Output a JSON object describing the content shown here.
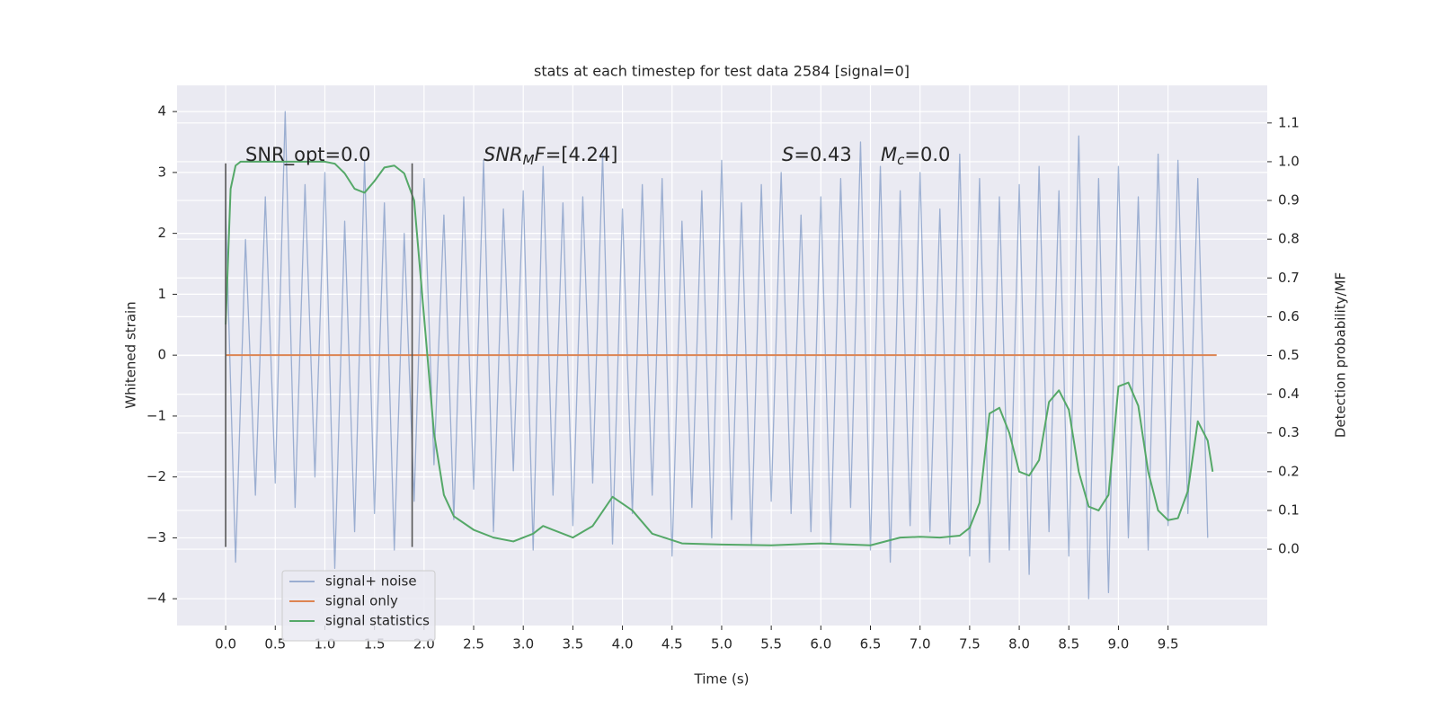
{
  "chart_data": {
    "type": "line",
    "title": "stats at each timestep for test data 2584 [signal=0]",
    "xlabel": "Time (s)",
    "ylabel": "Whitened strain",
    "y2label": "Detection probability/MF",
    "xlim": [
      -0.49,
      10.5
    ],
    "ylim": [
      -4.44,
      4.43
    ],
    "y2lim": [
      -0.197,
      1.197
    ],
    "grid": true,
    "legend": "lower left",
    "xticks": [
      {
        "value": 0,
        "label": "0.0"
      },
      {
        "value": 0.5,
        "label": "0.5"
      },
      {
        "value": 1,
        "label": "1.0"
      },
      {
        "value": 1.5,
        "label": "1.5"
      },
      {
        "value": 2,
        "label": "2.0"
      },
      {
        "value": 2.5,
        "label": "2.5"
      },
      {
        "value": 3,
        "label": "3.0"
      },
      {
        "value": 3.5,
        "label": "3.5"
      },
      {
        "value": 4,
        "label": "4.0"
      },
      {
        "value": 4.5,
        "label": "4.5"
      },
      {
        "value": 5,
        "label": "5.0"
      },
      {
        "value": 5.5,
        "label": "5.5"
      },
      {
        "value": 6,
        "label": "6.0"
      },
      {
        "value": 6.5,
        "label": "6.5"
      },
      {
        "value": 7,
        "label": "7.0"
      },
      {
        "value": 7.5,
        "label": "7.5"
      },
      {
        "value": 8,
        "label": "8.0"
      },
      {
        "value": 8.5,
        "label": "8.5"
      },
      {
        "value": 9,
        "label": "9.0"
      },
      {
        "value": 9.5,
        "label": "9.5"
      }
    ],
    "yticks": [
      {
        "value": -4,
        "label": "−4"
      },
      {
        "value": -3,
        "label": "−3"
      },
      {
        "value": -2,
        "label": "−2"
      },
      {
        "value": -1,
        "label": "−1"
      },
      0,
      1,
      2,
      3,
      4
    ],
    "y2ticks": [
      {
        "value": 0,
        "label": "0.0"
      },
      {
        "value": 0.1,
        "label": "0.1"
      },
      {
        "value": 0.2,
        "label": "0.2"
      },
      {
        "value": 0.3,
        "label": "0.3"
      },
      {
        "value": 0.4,
        "label": "0.4"
      },
      {
        "value": 0.5,
        "label": "0.5"
      },
      {
        "value": 0.6,
        "label": "0.6"
      },
      {
        "value": 0.7,
        "label": "0.7"
      },
      {
        "value": 0.8,
        "label": "0.8"
      },
      {
        "value": 0.9,
        "label": "0.9"
      },
      {
        "value": 1,
        "label": "1.0"
      },
      {
        "value": 1.1,
        "label": "1.1"
      }
    ],
    "vlines": {
      "x": [
        0,
        1.88
      ],
      "ymin": -3.15,
      "ymax": 3.15,
      "color": "#555555"
    },
    "annotations": [
      [
        {
          "text": "SNR_opt=0.0",
          "italic": false
        }
      ],
      [
        {
          "text": "SNR",
          "italic": true
        },
        {
          "text": "M",
          "italic": true,
          "sub": true
        },
        {
          "text": "F",
          "italic": true
        },
        {
          "text": "=[4.24]",
          "italic": false
        }
      ],
      [
        {
          "text": "S",
          "italic": true
        },
        {
          "text": "=0.43",
          "italic": false
        }
      ],
      [
        {
          "text": "M",
          "italic": true
        },
        {
          "text": "c",
          "italic": true,
          "sub": true
        },
        {
          "text": "=0.0",
          "italic": false
        }
      ]
    ],
    "series": [
      {
        "name": "signal+ noise",
        "color": "#4c72b0",
        "opacity": 0.5,
        "x": [
          0,
          0.1,
          0.2,
          0.3,
          0.4,
          0.5,
          0.6,
          0.7,
          0.8,
          0.9,
          1,
          1.1,
          1.2,
          1.3,
          1.4,
          1.5,
          1.6,
          1.7,
          1.8,
          1.9,
          2,
          2.1,
          2.2,
          2.3,
          2.4,
          2.5,
          2.6,
          2.7,
          2.8,
          2.9,
          3,
          3.1,
          3.2,
          3.3,
          3.4,
          3.5,
          3.6,
          3.7,
          3.8,
          3.9,
          4,
          4.1,
          4.2,
          4.3,
          4.4,
          4.5,
          4.6,
          4.7,
          4.8,
          4.9,
          5,
          5.1,
          5.2,
          5.3,
          5.4,
          5.5,
          5.6,
          5.7,
          5.8,
          5.9,
          6,
          6.1,
          6.2,
          6.3,
          6.4,
          6.5,
          6.6,
          6.7,
          6.8,
          6.9,
          7,
          7.1,
          7.2,
          7.3,
          7.4,
          7.5,
          7.6,
          7.7,
          7.8,
          7.9,
          8,
          8.1,
          8.2,
          8.3,
          8.4,
          8.5,
          8.6,
          8.7,
          8.8,
          8.9,
          9,
          9.1,
          9.2,
          9.3,
          9.4,
          9.5,
          9.6,
          9.7,
          9.8,
          9.9
        ],
        "values": [
          2.4,
          -3.4,
          1.9,
          -2.3,
          2.6,
          -2.1,
          4.0,
          -2.5,
          2.8,
          -2.0,
          3.0,
          -3.5,
          2.2,
          -2.9,
          3.2,
          -2.6,
          2.5,
          -3.2,
          2.0,
          -2.4,
          2.9,
          -1.8,
          2.3,
          -2.7,
          2.6,
          -2.2,
          3.2,
          -2.9,
          2.4,
          -1.9,
          2.7,
          -3.2,
          3.1,
          -2.3,
          2.5,
          -2.8,
          2.6,
          -2.1,
          3.3,
          -3.1,
          2.4,
          -2.6,
          2.8,
          -2.3,
          2.9,
          -3.3,
          2.2,
          -2.5,
          2.7,
          -3.0,
          3.2,
          -2.7,
          2.5,
          -3.1,
          2.8,
          -2.4,
          3.0,
          -2.6,
          2.3,
          -2.9,
          2.6,
          -3.1,
          2.9,
          -2.5,
          3.5,
          -3.2,
          3.1,
          -3.4,
          2.7,
          -2.8,
          3.0,
          -2.9,
          2.4,
          -3.1,
          3.3,
          -3.3,
          2.9,
          -3.4,
          2.6,
          -3.2,
          2.8,
          -3.6,
          3.1,
          -2.9,
          2.7,
          -3.3,
          3.6,
          -4.0,
          2.9,
          -3.9,
          3.1,
          -3.0,
          2.6,
          -3.2,
          3.3,
          -2.8,
          3.2,
          -2.6,
          2.9,
          -3.0
        ]
      },
      {
        "name": "signal only",
        "color": "#dd8452",
        "opacity": 1,
        "x": [
          0,
          9.99
        ],
        "values": [
          0,
          0
        ]
      },
      {
        "name": "signal statistics",
        "color": "#55a868",
        "opacity": 1,
        "axis": "y2",
        "x": [
          0,
          0.05,
          0.1,
          0.15,
          0.2,
          0.3,
          0.5,
          0.8,
          1.0,
          1.1,
          1.2,
          1.3,
          1.4,
          1.5,
          1.6,
          1.7,
          1.8,
          1.9,
          2.0,
          2.1,
          2.2,
          2.3,
          2.5,
          2.7,
          2.9,
          3.1,
          3.2,
          3.3,
          3.5,
          3.7,
          3.9,
          4.1,
          4.3,
          4.6,
          5.0,
          5.5,
          6.0,
          6.5,
          6.8,
          7.0,
          7.2,
          7.4,
          7.5,
          7.6,
          7.7,
          7.8,
          7.9,
          8.0,
          8.1,
          8.2,
          8.3,
          8.4,
          8.5,
          8.6,
          8.7,
          8.8,
          8.9,
          9.0,
          9.1,
          9.2,
          9.3,
          9.4,
          9.5,
          9.6,
          9.7,
          9.8,
          9.9,
          9.95
        ],
        "values": [
          0.58,
          0.93,
          0.99,
          1.0,
          1.0,
          1.0,
          1.0,
          1.0,
          1.0,
          0.995,
          0.97,
          0.93,
          0.92,
          0.95,
          0.985,
          0.99,
          0.97,
          0.9,
          0.6,
          0.3,
          0.14,
          0.085,
          0.05,
          0.03,
          0.02,
          0.04,
          0.06,
          0.05,
          0.03,
          0.06,
          0.135,
          0.1,
          0.04,
          0.015,
          0.012,
          0.01,
          0.015,
          0.01,
          0.03,
          0.032,
          0.03,
          0.035,
          0.055,
          0.12,
          0.35,
          0.365,
          0.3,
          0.2,
          0.19,
          0.23,
          0.38,
          0.41,
          0.36,
          0.2,
          0.11,
          0.1,
          0.14,
          0.42,
          0.43,
          0.37,
          0.2,
          0.1,
          0.075,
          0.08,
          0.15,
          0.33,
          0.28,
          0.2
        ]
      }
    ]
  }
}
